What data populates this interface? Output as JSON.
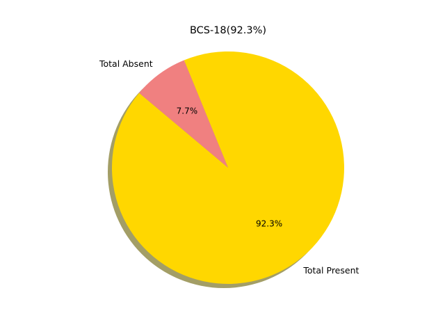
{
  "chart_data": {
    "type": "pie",
    "title": "BCS-18(92.3%)",
    "slices": [
      {
        "label": "Total Present",
        "value": 92.3,
        "pct_label": "92.3%",
        "color": "#ffd700"
      },
      {
        "label": "Total Absent",
        "value": 7.7,
        "pct_label": "7.7%",
        "color": "#f08080"
      }
    ],
    "start_angle_deg": 140,
    "shadow": true,
    "shadow_color": "#a39e66",
    "legend": "none"
  }
}
